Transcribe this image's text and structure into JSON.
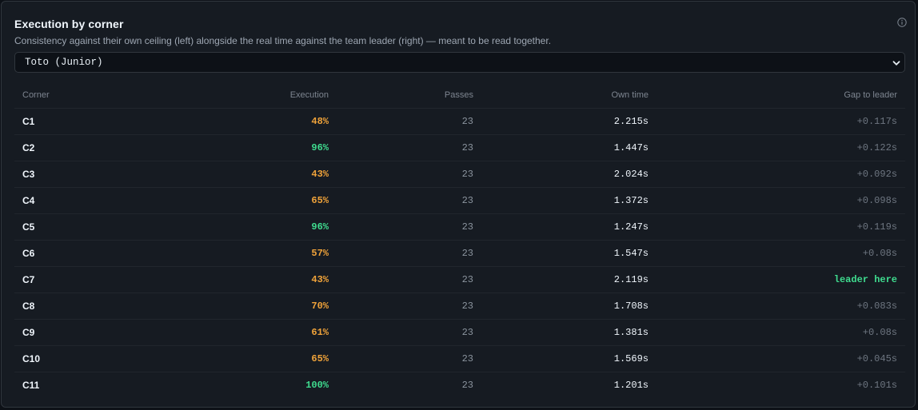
{
  "card": {
    "title": "Execution by corner",
    "subtitle": "Consistency against their own ceiling (left) alongside the real time against the team leader (right) — meant to be read together.",
    "info_icon": "info-circle-icon"
  },
  "driver_select": {
    "value": "Toto (Junior)",
    "icon": "chevron-down-icon"
  },
  "table": {
    "headers": {
      "corner": "Corner",
      "execution": "Execution",
      "passes": "Passes",
      "own_time": "Own time",
      "gap": "Gap to leader"
    },
    "rows": [
      {
        "corner": "C1",
        "execution": "48%",
        "exec_level": "mid",
        "passes": "23",
        "own_time": "2.215s",
        "gap": "+0.117s",
        "leader": false
      },
      {
        "corner": "C2",
        "execution": "96%",
        "exec_level": "high",
        "passes": "23",
        "own_time": "1.447s",
        "gap": "+0.122s",
        "leader": false
      },
      {
        "corner": "C3",
        "execution": "43%",
        "exec_level": "mid",
        "passes": "23",
        "own_time": "2.024s",
        "gap": "+0.092s",
        "leader": false
      },
      {
        "corner": "C4",
        "execution": "65%",
        "exec_level": "mid",
        "passes": "23",
        "own_time": "1.372s",
        "gap": "+0.098s",
        "leader": false
      },
      {
        "corner": "C5",
        "execution": "96%",
        "exec_level": "high",
        "passes": "23",
        "own_time": "1.247s",
        "gap": "+0.119s",
        "leader": false
      },
      {
        "corner": "C6",
        "execution": "57%",
        "exec_level": "mid",
        "passes": "23",
        "own_time": "1.547s",
        "gap": "+0.08s",
        "leader": false
      },
      {
        "corner": "C7",
        "execution": "43%",
        "exec_level": "mid",
        "passes": "23",
        "own_time": "2.119s",
        "gap": "leader here",
        "leader": true
      },
      {
        "corner": "C8",
        "execution": "70%",
        "exec_level": "mid",
        "passes": "23",
        "own_time": "1.708s",
        "gap": "+0.083s",
        "leader": false
      },
      {
        "corner": "C9",
        "execution": "61%",
        "exec_level": "mid",
        "passes": "23",
        "own_time": "1.381s",
        "gap": "+0.08s",
        "leader": false
      },
      {
        "corner": "C10",
        "execution": "65%",
        "exec_level": "mid",
        "passes": "23",
        "own_time": "1.569s",
        "gap": "+0.045s",
        "leader": false
      },
      {
        "corner": "C11",
        "execution": "100%",
        "exec_level": "high",
        "passes": "23",
        "own_time": "1.201s",
        "gap": "+0.101s",
        "leader": false
      }
    ]
  },
  "colors": {
    "exec_high": "#3fdc8f",
    "exec_mid": "#f0a33a",
    "leader": "#3fdc8f",
    "background": "#0d1117",
    "panel": "#161b22"
  }
}
